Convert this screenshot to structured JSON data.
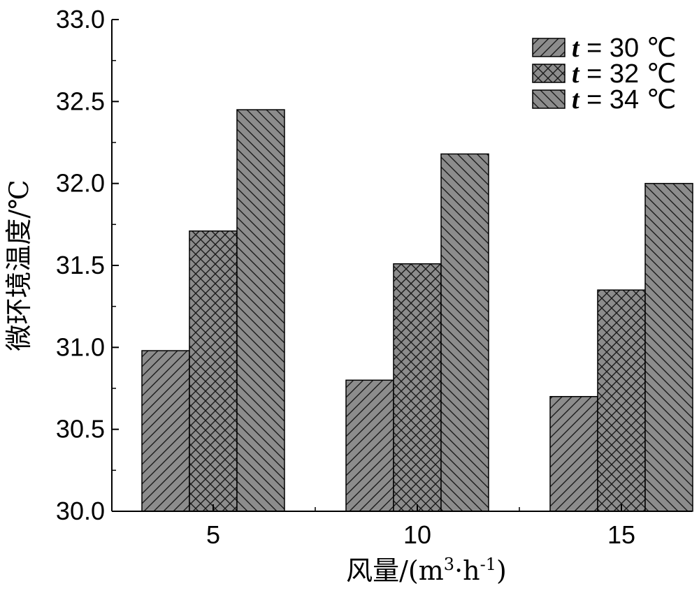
{
  "chart_data": {
    "type": "bar",
    "categories": [
      "5",
      "10",
      "15"
    ],
    "series": [
      {
        "name": "t = 30 ℃",
        "var": "t",
        "eq": " = 30 ℃",
        "pattern": "diag-forward",
        "values": [
          30.98,
          30.8,
          30.7
        ]
      },
      {
        "name": "t = 32 ℃",
        "var": "t",
        "eq": " = 32 ℃",
        "pattern": "crosshatch",
        "values": [
          31.71,
          31.51,
          31.35
        ]
      },
      {
        "name": "t = 34 ℃",
        "var": "t",
        "eq": " = 34 ℃",
        "pattern": "diag-back",
        "values": [
          32.45,
          32.18,
          32.0
        ]
      }
    ],
    "xlabel": "风量/(m³·h⁻¹)",
    "xlabel_parts": {
      "main": "风量/(m",
      "sup1": "3",
      "mid": "·h",
      "sup2": "-1",
      "end": ")"
    },
    "ylabel": "微环境温度/℃",
    "ylim": [
      30.0,
      33.0
    ],
    "yticks": [
      "30.0",
      "30.5",
      "31.0",
      "31.5",
      "32.0",
      "32.5",
      "33.0"
    ],
    "legend_position": "top-right",
    "grid": false,
    "colors": {
      "bar_fill": "#8c8c8c",
      "hatch": "#1a1a1a",
      "axis": "#000000"
    }
  }
}
